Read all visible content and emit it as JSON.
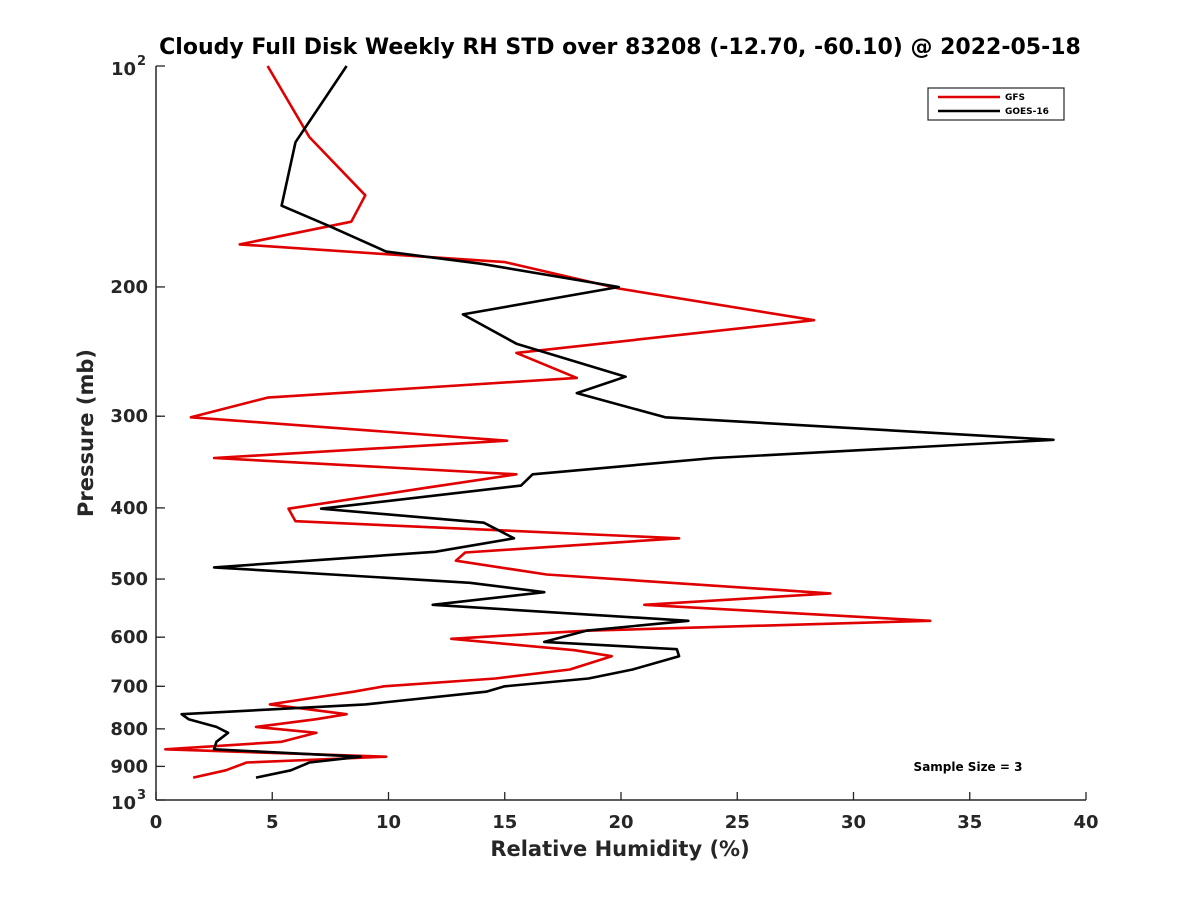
{
  "chart_data": {
    "type": "line",
    "title": "Cloudy Full Disk Weekly RH STD over 83208 (-12.70, -60.10) @ 2022-05-18",
    "xlabel": "Relative Humidity (%)",
    "ylabel": "Pressure (mb)",
    "xlim": [
      0,
      40
    ],
    "ylim": [
      100,
      1000
    ],
    "yscale": "log",
    "y_reversed": true,
    "xticks": [
      0,
      5,
      10,
      15,
      20,
      25,
      30,
      35,
      40
    ],
    "yticks": [
      {
        "value": 100,
        "base": "10",
        "exp": "2"
      },
      {
        "value": 200,
        "label": "200"
      },
      {
        "value": 300,
        "label": "300"
      },
      {
        "value": 400,
        "label": "400"
      },
      {
        "value": 500,
        "label": "500"
      },
      {
        "value": 600,
        "label": "600"
      },
      {
        "value": 700,
        "label": "700"
      },
      {
        "value": 800,
        "label": "800"
      },
      {
        "value": 900,
        "label": "900"
      },
      {
        "value": 1000,
        "base": "10",
        "exp": "3"
      }
    ],
    "legend_position": "top-right",
    "annotation": "Sample Size = 3",
    "series": [
      {
        "name": "GFS",
        "color": "#e00000",
        "points": [
          [
            4.8,
            100
          ],
          [
            6.6,
            125
          ],
          [
            9.0,
            150
          ],
          [
            8.4,
            163
          ],
          [
            3.6,
            175
          ],
          [
            15.0,
            185
          ],
          [
            19.9,
            201
          ],
          [
            28.3,
            222
          ],
          [
            15.5,
            246
          ],
          [
            18.1,
            266
          ],
          [
            4.8,
            283
          ],
          [
            1.5,
            301
          ],
          [
            15.1,
            324
          ],
          [
            2.5,
            342
          ],
          [
            15.5,
            360
          ],
          [
            11.5,
            376
          ],
          [
            5.7,
            401
          ],
          [
            6.0,
            417
          ],
          [
            22.5,
            440
          ],
          [
            13.3,
            460
          ],
          [
            12.9,
            472
          ],
          [
            16.8,
            493
          ],
          [
            29.0,
            523
          ],
          [
            21.0,
            542
          ],
          [
            33.3,
            570
          ],
          [
            18.5,
            588
          ],
          [
            12.7,
            603
          ],
          [
            18.0,
            625
          ],
          [
            19.6,
            637
          ],
          [
            17.8,
            664
          ],
          [
            14.6,
            683
          ],
          [
            9.8,
            700
          ],
          [
            8.5,
            712
          ],
          [
            4.9,
            741
          ],
          [
            8.2,
            764
          ],
          [
            6.9,
            776
          ],
          [
            4.3,
            795
          ],
          [
            6.9,
            810
          ],
          [
            5.4,
            833
          ],
          [
            0.4,
            853
          ],
          [
            9.9,
            873
          ],
          [
            3.9,
            889
          ],
          [
            3.0,
            911
          ],
          [
            1.6,
            932
          ]
        ]
      },
      {
        "name": "GOES-16",
        "color": "#000000",
        "points": [
          [
            8.2,
            100
          ],
          [
            6.0,
            127
          ],
          [
            5.4,
            155
          ],
          [
            7.4,
            165
          ],
          [
            9.9,
            179
          ],
          [
            14.0,
            186
          ],
          [
            19.9,
            200
          ],
          [
            13.2,
            218
          ],
          [
            15.5,
            239
          ],
          [
            20.2,
            265
          ],
          [
            18.1,
            279
          ],
          [
            21.9,
            301
          ],
          [
            38.6,
            323
          ],
          [
            24.0,
            342
          ],
          [
            16.2,
            360
          ],
          [
            15.7,
            373
          ],
          [
            7.1,
            401
          ],
          [
            14.1,
            419
          ],
          [
            15.4,
            440
          ],
          [
            12.0,
            459
          ],
          [
            2.5,
            482
          ],
          [
            13.5,
            506
          ],
          [
            16.7,
            521
          ],
          [
            11.9,
            542
          ],
          [
            22.9,
            570
          ],
          [
            18.5,
            588
          ],
          [
            16.7,
            609
          ],
          [
            22.4,
            623
          ],
          [
            22.5,
            637
          ],
          [
            20.5,
            664
          ],
          [
            18.6,
            683
          ],
          [
            15.0,
            700
          ],
          [
            14.2,
            712
          ],
          [
            9.0,
            741
          ],
          [
            1.1,
            764
          ],
          [
            1.4,
            776
          ],
          [
            2.6,
            795
          ],
          [
            3.1,
            810
          ],
          [
            2.6,
            833
          ],
          [
            2.5,
            853
          ],
          [
            8.8,
            873
          ],
          [
            6.6,
            889
          ],
          [
            5.8,
            911
          ],
          [
            4.3,
            932
          ]
        ]
      }
    ]
  }
}
